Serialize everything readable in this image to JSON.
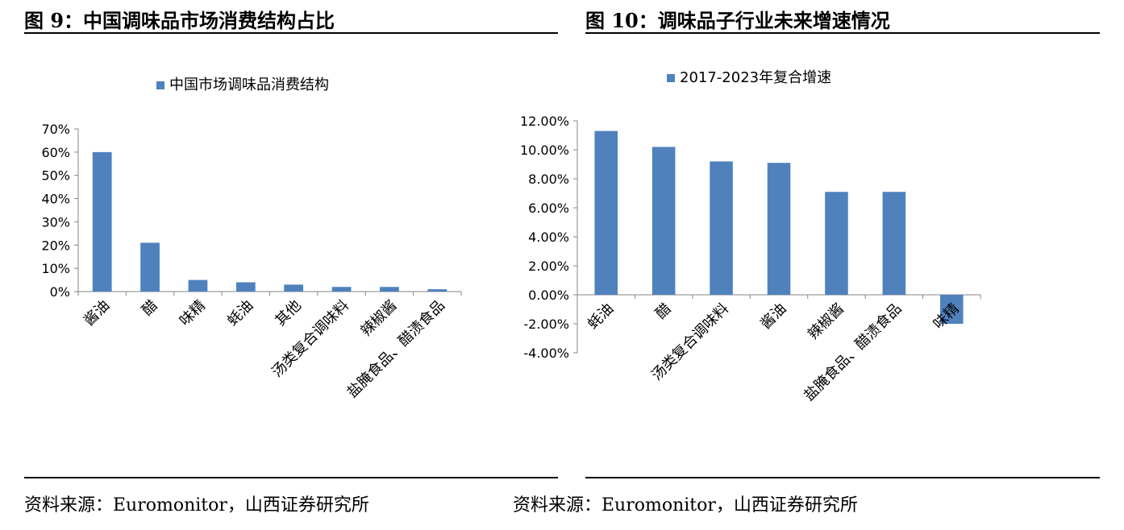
{
  "left": {
    "figure_title": "图 9：中国调味品市场消费结构占比",
    "source": "资料来源：Euromonitor，山西证券研究所"
  },
  "right": {
    "figure_title": "图 10：调味品子行业未来增速情况",
    "source": "资料来源：Euromonitor，山西证券研究所"
  },
  "colors": {
    "bar": "#4F81BD",
    "axis": "#868686"
  },
  "chart_data": [
    {
      "type": "bar",
      "title": "",
      "legend": "中国市场调味品消费结构",
      "legend_position": "top",
      "categories": [
        "酱油",
        "醋",
        "味精",
        "蚝油",
        "其他",
        "汤类复合调味料",
        "辣椒酱",
        "盐腌食品、醋渍食品"
      ],
      "series": [
        {
          "name": "中国市场调味品消费结构",
          "values": [
            60,
            21,
            5,
            4,
            3,
            2,
            2,
            1
          ]
        }
      ],
      "ylim": [
        0,
        70
      ],
      "yticks": [
        0,
        10,
        20,
        30,
        40,
        50,
        60,
        70
      ],
      "ytick_labels": [
        "0%",
        "10%",
        "20%",
        "30%",
        "40%",
        "50%",
        "60%",
        "70%"
      ],
      "grid": false
    },
    {
      "type": "bar",
      "title": "",
      "legend": "2017-2023年复合增速",
      "legend_position": "top",
      "categories": [
        "蚝油",
        "醋",
        "汤类复合调味料",
        "酱油",
        "辣椒酱",
        "盐腌食品、醋渍食品",
        "味精"
      ],
      "series": [
        {
          "name": "2017-2023年复合增速",
          "values": [
            11.3,
            10.2,
            9.2,
            9.1,
            7.1,
            7.1,
            -2.0
          ]
        }
      ],
      "ylim": [
        -4,
        12
      ],
      "yticks": [
        -4,
        -2,
        0,
        2,
        4,
        6,
        8,
        10,
        12
      ],
      "ytick_labels": [
        "-4.00%",
        "-2.00%",
        "0.00%",
        "2.00%",
        "4.00%",
        "6.00%",
        "8.00%",
        "10.00%",
        "12.00%"
      ],
      "grid": false
    }
  ]
}
